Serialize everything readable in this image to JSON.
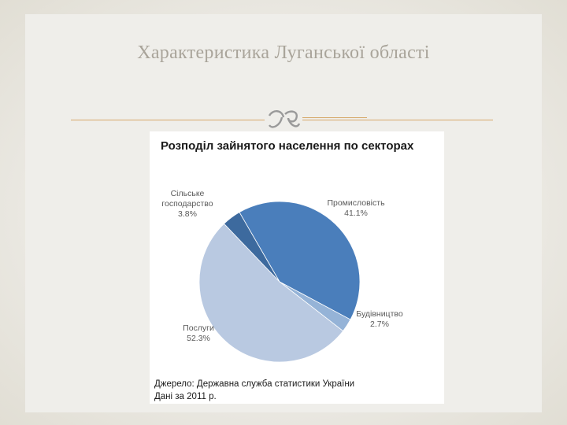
{
  "slide": {
    "title": "Характеристика Луганської області"
  },
  "chart_data": {
    "type": "pie",
    "title": "Розподіл зайнятого населення по секторах",
    "slices": [
      {
        "label_lines": [
          "Промисловість"
        ],
        "value": 41.1,
        "value_label": "41.1%",
        "color": "#4a7ebb"
      },
      {
        "label_lines": [
          "Будівництво"
        ],
        "value": 2.7,
        "value_label": "2.7%",
        "color": "#95b3d7"
      },
      {
        "label_lines": [
          "Послуги"
        ],
        "value": 52.3,
        "value_label": "52.3%",
        "color": "#b9c9e1"
      },
      {
        "label_lines": [
          "Сільське",
          "господарство"
        ],
        "value": 3.8,
        "value_label": "3.8%",
        "color": "#3d6a9e"
      }
    ],
    "legend": "none",
    "source_lines": [
      "Джерело: Державна служба статистики України",
      "Дані за 2011 р."
    ]
  },
  "colors": {
    "accent_rule": "#d6a86a",
    "title_text": "#a9a49a"
  }
}
